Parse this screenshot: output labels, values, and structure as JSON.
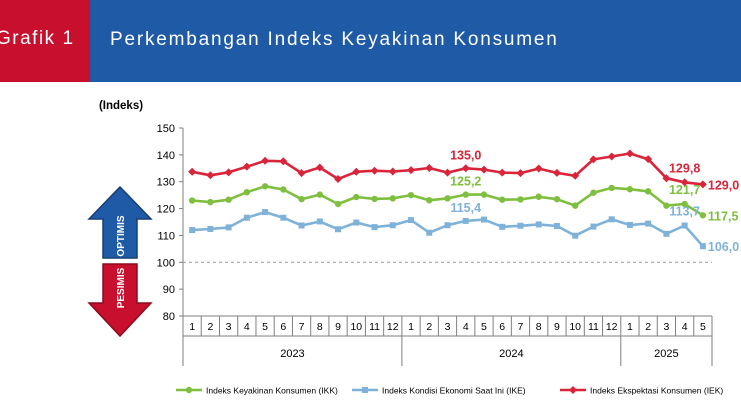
{
  "header": {
    "label": "Grafik 1",
    "title": "Perkembangan Indeks Keyakinan Konsumen"
  },
  "chart_data": {
    "type": "line",
    "ylabel": "(Indeks)",
    "ylim": [
      80,
      150
    ],
    "yticks": [
      80,
      90,
      100,
      110,
      120,
      130,
      140,
      150
    ],
    "reference_line": 100,
    "categories": [
      "1",
      "2",
      "3",
      "4",
      "5",
      "6",
      "7",
      "8",
      "9",
      "10",
      "11",
      "12",
      "1",
      "2",
      "3",
      "4",
      "5",
      "6",
      "7",
      "8",
      "9",
      "10",
      "11",
      "12",
      "1",
      "2",
      "3",
      "4",
      "5"
    ],
    "year_groups": [
      {
        "label": "2023",
        "months": 12
      },
      {
        "label": "2024",
        "months": 12
      },
      {
        "label": "2025",
        "months": 5
      }
    ],
    "optimis_label": "OPTIMIS",
    "pesimis_label": "PESIMIS",
    "series": [
      {
        "name": "Indeks Ekspektasi Konsumen (IEK)",
        "color": "#d9253a",
        "values": [
          133.7,
          132.4,
          133.5,
          135.6,
          137.8,
          137.6,
          133.2,
          135.3,
          131.0,
          133.7,
          134.1,
          133.8,
          134.3,
          135.1,
          133.4,
          135.0,
          134.5,
          133.4,
          133.2,
          134.9,
          133.3,
          132.2,
          138.3,
          139.4,
          140.5,
          138.4,
          131.3,
          129.8,
          129.0
        ],
        "annotations": [
          {
            "index": 15,
            "text": "135,0"
          },
          {
            "index": 27,
            "text": "129,8"
          },
          {
            "index": 28,
            "text": "129,0"
          }
        ]
      },
      {
        "name": "Indeks Keyakinan Konsumen (IKK)",
        "color": "#7fbf3f",
        "values": [
          123.0,
          122.4,
          123.3,
          126.1,
          128.3,
          127.1,
          123.5,
          125.2,
          121.7,
          124.3,
          123.6,
          123.8,
          125.0,
          123.1,
          123.8,
          125.2,
          125.2,
          123.3,
          123.4,
          124.4,
          123.5,
          121.1,
          125.9,
          127.7,
          127.2,
          126.4,
          121.1,
          121.7,
          117.5
        ],
        "annotations": [
          {
            "index": 15,
            "text": "125,2"
          },
          {
            "index": 27,
            "text": "121,7"
          },
          {
            "index": 28,
            "text": "117,5"
          }
        ]
      },
      {
        "name": "Indeks Kondisi Ekonomi Saat Ini (IKE)",
        "color": "#7fb2d9",
        "values": [
          112.0,
          112.4,
          113.0,
          116.6,
          118.7,
          116.6,
          113.7,
          115.2,
          112.3,
          114.8,
          113.1,
          113.8,
          115.7,
          111.0,
          113.8,
          115.4,
          115.9,
          113.2,
          113.6,
          114.1,
          113.5,
          109.9,
          113.3,
          116.0,
          113.9,
          114.4,
          110.6,
          113.7,
          106.0
        ],
        "annotations": [
          {
            "index": 15,
            "text": "115,4"
          },
          {
            "index": 27,
            "text": "113,7"
          },
          {
            "index": 28,
            "text": "106,0"
          }
        ]
      }
    ],
    "legend": [
      {
        "label": "Indeks Keyakinan Konsumen (IKK)",
        "color": "#7fbf3f",
        "marker": "circle"
      },
      {
        "label": "Indeks Kondisi Ekonomi Saat Ini (IKE)",
        "color": "#7fb2d9",
        "marker": "square"
      },
      {
        "label": "Indeks Ekspektasi Konsumen (IEK)",
        "color": "#d9253a",
        "marker": "diamond"
      }
    ]
  }
}
